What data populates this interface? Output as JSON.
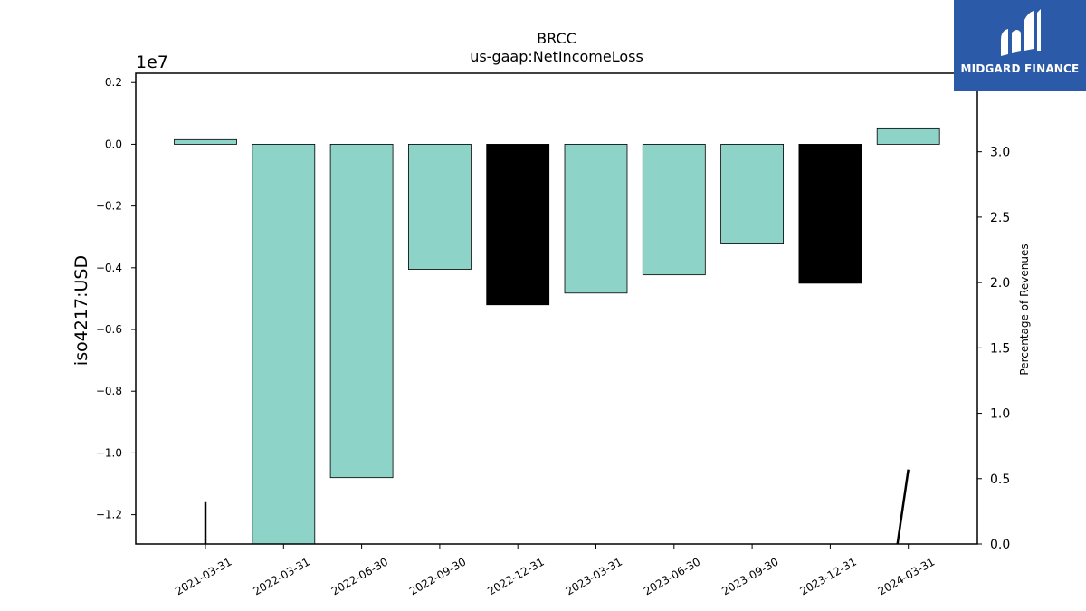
{
  "chart_data": {
    "type": "bar",
    "title": "BRCC",
    "subtitle": "us-gaap:NetIncomeLoss",
    "ylabel": "iso4217:USD",
    "y_offset_label": "1e7",
    "y2label": "Percentage of Revenues",
    "categories": [
      "2021-03-31",
      "2022-03-31",
      "2022-06-30",
      "2022-09-30",
      "2022-12-31",
      "2023-03-31",
      "2023-06-30",
      "2023-09-30",
      "2023-12-31",
      "2024-03-31"
    ],
    "values": [
      150000,
      -13000000,
      -10800000,
      -4050000,
      -5200000,
      -4820000,
      -4230000,
      -3230000,
      -4500000,
      530000
    ],
    "bar_colors": [
      "#8dd3c7",
      "#8dd3c7",
      "#8dd3c7",
      "#8dd3c7",
      "#000000",
      "#8dd3c7",
      "#8dd3c7",
      "#8dd3c7",
      "#000000",
      "#8dd3c7"
    ],
    "ylim": [
      -12950000,
      2300000
    ],
    "yticks": [
      0.2,
      0.0,
      -0.2,
      -0.4,
      -0.6,
      -0.8,
      -1.0,
      -1.2
    ],
    "ytick_labels": [
      "0.2",
      "0.0",
      "−0.2",
      "−0.4",
      "−0.6",
      "−0.8",
      "−1.0",
      "−1.2"
    ],
    "y2lim": [
      0.0,
      3.6
    ],
    "y2ticks": [
      0.0,
      0.5,
      1.0,
      1.5,
      2.0,
      2.5,
      3.0
    ],
    "y2tick_labels": [
      "0.0",
      "0.5",
      "1.0",
      "1.5",
      "2.0",
      "2.5",
      "3.0"
    ],
    "line_series": [
      {
        "segment": [
          [
            "2021-03-31",
            0.0
          ],
          [
            "2021-03-31",
            0.32
          ]
        ]
      },
      {
        "segment": [
          [
            "2024-03-31",
            0.0
          ],
          [
            "2024-03-31",
            0.57
          ]
        ]
      }
    ],
    "grid": false
  },
  "logo": {
    "text": "MIDGARD FINANCE"
  }
}
